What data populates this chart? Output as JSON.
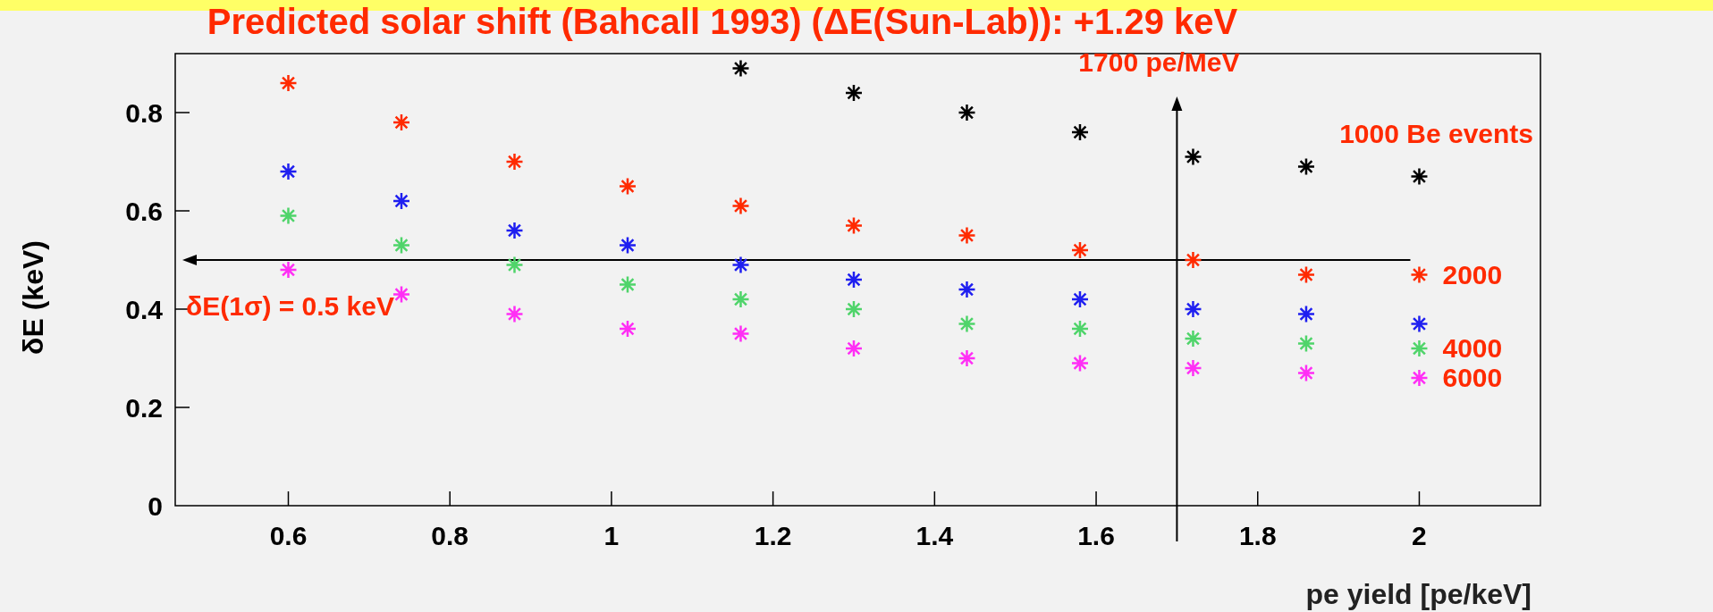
{
  "chart_data": {
    "type": "scatter",
    "title": "Predicted solar shift (Bahcall 1993) (ΔE(Sun-Lab)): +1.29 keV",
    "xlabel": "pe yield [pe/keV]",
    "ylabel": "δE (keV)",
    "x": [
      0.6,
      0.74,
      0.88,
      1.02,
      1.16,
      1.3,
      1.44,
      1.58,
      1.72,
      1.86,
      2.0
    ],
    "series": [
      {
        "name": "1000 Be events",
        "color": "#000000",
        "values": [
          null,
          null,
          null,
          null,
          0.89,
          0.84,
          0.8,
          0.76,
          0.71,
          0.69,
          0.67
        ]
      },
      {
        "name": "2000",
        "color": "#ff2a00",
        "values": [
          0.86,
          0.78,
          0.7,
          0.65,
          0.61,
          0.57,
          0.55,
          0.52,
          0.5,
          0.47,
          0.47
        ]
      },
      {
        "color": "#1f1ff0",
        "values": [
          0.68,
          0.62,
          0.56,
          0.53,
          0.49,
          0.46,
          0.44,
          0.42,
          0.4,
          0.39,
          0.37
        ]
      },
      {
        "name": "4000",
        "color": "#4fd46a",
        "values": [
          0.59,
          0.53,
          0.49,
          0.45,
          0.42,
          0.4,
          0.37,
          0.36,
          0.34,
          0.33,
          0.32
        ]
      },
      {
        "name": "6000",
        "color": "#ff2ef5",
        "values": [
          0.48,
          0.43,
          0.39,
          0.36,
          0.35,
          0.32,
          0.3,
          0.29,
          0.28,
          0.27,
          0.26
        ]
      }
    ],
    "xlim": [
      0.46,
      2.15
    ],
    "ylim": [
      0,
      0.92
    ],
    "xticks": [
      0.6,
      0.8,
      1,
      1.2,
      1.4,
      1.6,
      1.8,
      2
    ],
    "yticks": [
      0,
      0.2,
      0.4,
      0.6,
      0.8
    ],
    "ref_lines": [
      {
        "axis": "y",
        "value": 0.5,
        "label": "δE(1σ) = 0.5 keV",
        "color": "#000000"
      },
      {
        "axis": "x",
        "value": 1.7,
        "label": "1700 pe/MeV",
        "color": "#000000"
      }
    ],
    "marker": "cross",
    "grid": false
  }
}
